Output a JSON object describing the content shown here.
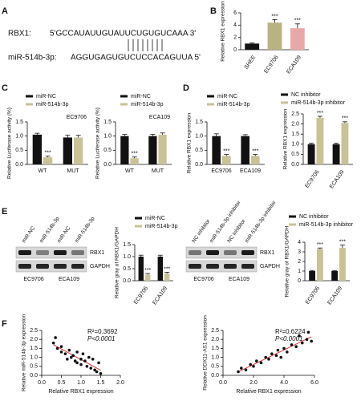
{
  "panel_labels": [
    "A",
    "B",
    "C",
    "D",
    "E",
    "F"
  ],
  "alignment": {
    "target_name": "RBX1:",
    "target_sequence": "5'GCCAUAUUGUAUUCUGUGUCAAA  3'",
    "mirna_name": "miR-514b-3p:",
    "mirna_sequence": "AGGUGAGUGUCUCCACAGUUA  5'"
  },
  "blots": [
    {
      "lanes": [
        "miR-NC",
        "miR-514b-3p",
        "miR-NC",
        "miR-514b-3p"
      ],
      "proteins": [
        "RBX1",
        "GAPDH"
      ],
      "groups": [
        "EC9706",
        "ECA109"
      ]
    },
    {
      "lanes": [
        "NC inhibitor",
        "miR-514b-3p inhibitor",
        "NC inhibitor",
        "miR-514b-3p inhibitor"
      ],
      "proteins": [
        "RBX1",
        "GAPDH"
      ],
      "groups": [
        "EC9706",
        "ECA109"
      ]
    }
  ],
  "chart_data": [
    {
      "type": "bar",
      "y_label": "Relative RBX1 expression",
      "categories": [
        "SHEE",
        "EC9706",
        "ECA109"
      ],
      "values": [
        1,
        4.4,
        3.5
      ],
      "errors": [
        0.1,
        0.5,
        0.7
      ],
      "colors": [
        "#111111",
        "#b9b283",
        "#e9a8a8"
      ],
      "significance": [
        null,
        "***",
        "***"
      ],
      "ylim": [
        0,
        6
      ],
      "yticks": [
        0,
        2,
        4,
        6
      ],
      "rotated_labels": true
    },
    {
      "type": "bar",
      "title": "EC9706",
      "y_label": "Relative Luciferase activity (%)",
      "categories": [
        "WT",
        "MUT"
      ],
      "series": [
        {
          "name": "miR-NC",
          "color": "#111111",
          "values": [
            1.05,
            0.95
          ],
          "errors": [
            0.05,
            0.08
          ]
        },
        {
          "name": "miR-514b-3p",
          "color": "#c8c296",
          "values": [
            0.25,
            0.95
          ],
          "errors": [
            0.04,
            0.08
          ],
          "significance": [
            "***",
            null
          ]
        }
      ],
      "ylim": [
        0,
        1.5
      ],
      "yticks": [
        {
          "value": 0,
          "label": "0.0"
        },
        0.5,
        {
          "value": 1,
          "label": "1.0"
        },
        1.5
      ],
      "legend": "top"
    },
    {
      "type": "bar",
      "title": "ECA109",
      "y_label": "Relative Luciferase activity (%)",
      "categories": [
        "WT",
        "MUT"
      ],
      "series": [
        {
          "name": "miR-NC",
          "color": "#111111",
          "values": [
            1.0,
            1.0
          ],
          "errors": [
            0.06,
            0.06
          ]
        },
        {
          "name": "miR-514b-3p",
          "color": "#c8c296",
          "values": [
            0.22,
            1.05
          ],
          "errors": [
            0.04,
            0.06
          ],
          "significance": [
            "***",
            null
          ]
        }
      ],
      "ylim": [
        0,
        1.5
      ],
      "yticks": [
        {
          "value": 0,
          "label": "0.0"
        },
        0.5,
        {
          "value": 1,
          "label": "1.0"
        },
        1.5
      ],
      "legend": "top"
    },
    {
      "type": "bar",
      "y_label": "Relative RBX1  expression",
      "categories": [
        "EC9706",
        "ECA109"
      ],
      "series": [
        {
          "name": "miR-NC",
          "color": "#111111",
          "values": [
            1.0,
            1.0
          ],
          "errors": [
            0.08,
            0.05
          ]
        },
        {
          "name": "miR-514b-3p",
          "color": "#c8c296",
          "values": [
            0.3,
            0.3
          ],
          "errors": [
            0.05,
            0.05
          ],
          "significance": [
            "***",
            "***"
          ]
        }
      ],
      "ylim": [
        0,
        1.5
      ],
      "yticks": [
        {
          "value": 0,
          "label": "0.0"
        },
        0.5,
        {
          "value": 1,
          "label": "1.0"
        },
        1.5
      ],
      "legend": "top"
    },
    {
      "type": "bar",
      "y_label": "Relative RBX1  expression",
      "categories": [
        "EC9706",
        "ECA109"
      ],
      "series": [
        {
          "name": "NC inhibitor",
          "color": "#111111",
          "values": [
            1.0,
            1.0
          ],
          "errors": [
            0.05,
            0.05
          ]
        },
        {
          "name": "miR-514b-3p inhibitor",
          "color": "#c8c296",
          "values": [
            2.3,
            2.05
          ],
          "errors": [
            0.08,
            0.06
          ],
          "significance": [
            "***",
            "***"
          ]
        }
      ],
      "ylim": [
        0,
        2.5
      ],
      "yticks": [
        {
          "value": 0,
          "label": "0.0"
        },
        0.5,
        {
          "value": 1,
          "label": "1.0"
        },
        1.5,
        {
          "value": 2,
          "label": "2.0"
        },
        2.5
      ],
      "legend": "top",
      "rotated_labels": true
    },
    {
      "type": "bar",
      "y_label": "Relative gray of RBX1/GAPDH",
      "categories": [
        "EC9706",
        "ECA109"
      ],
      "series": [
        {
          "name": "miR-NC",
          "color": "#111111",
          "values": [
            1.0,
            1.0
          ],
          "errors": [
            0.06,
            0.06
          ]
        },
        {
          "name": "miR-514b-3p",
          "color": "#c8c296",
          "values": [
            0.25,
            0.3
          ],
          "errors": [
            0.05,
            0.05
          ],
          "significance": [
            "***",
            "***"
          ]
        }
      ],
      "ylim": [
        0,
        1.5
      ],
      "yticks": [
        {
          "value": 0,
          "label": "0.0"
        },
        0.5,
        {
          "value": 1,
          "label": "1.0"
        },
        1.5
      ],
      "legend": "top",
      "rotated_labels": true
    },
    {
      "type": "bar",
      "y_label": "Relative gray of RBX1/GAPDH",
      "categories": [
        "EC9706",
        "ECA109"
      ],
      "series": [
        {
          "name": "NC inhibitor",
          "color": "#111111",
          "values": [
            1.0,
            1.0
          ],
          "errors": [
            0.06,
            0.06
          ]
        },
        {
          "name": "miR-514b-3p inhibitor",
          "color": "#c8c296",
          "values": [
            3.3,
            3.4
          ],
          "errors": [
            0.1,
            0.3
          ],
          "significance": [
            "***",
            "***"
          ]
        }
      ],
      "ylim": [
        0,
        4
      ],
      "yticks": [
        0,
        1,
        2,
        3,
        4
      ],
      "legend": "top",
      "rotated_labels": true
    },
    {
      "type": "scatter",
      "x_label": "Relative RBX1 expression",
      "y_label": "Relative miR-514b-3p expression",
      "annotations": [
        "R²=0.3692",
        "P<0.0001"
      ],
      "color": "#111111",
      "line_color": "#e03030",
      "x": [
        0.3,
        0.35,
        0.4,
        0.5,
        0.5,
        0.6,
        0.65,
        0.7,
        0.75,
        0.8,
        0.85,
        0.9,
        0.9,
        1.0,
        1.0,
        1.05,
        1.1,
        1.15,
        1.2,
        1.25,
        1.3,
        1.35,
        1.4,
        1.45,
        1.5
      ],
      "values": [
        1.8,
        2.1,
        1.5,
        1.3,
        1.6,
        1.2,
        0.9,
        1.4,
        1.0,
        1.1,
        0.8,
        0.7,
        1.3,
        0.9,
        0.6,
        1.2,
        0.8,
        0.5,
        1.0,
        0.4,
        0.9,
        0.3,
        0.2,
        0.7,
        0.1
      ],
      "xlim": [
        0,
        2
      ],
      "xticks": [
        {
          "value": 0,
          "label": "0.0"
        },
        0.5,
        {
          "value": 1,
          "label": "1.0"
        },
        1.5,
        {
          "value": 2,
          "label": "2.0"
        }
      ],
      "ylim": [
        0,
        2.5
      ],
      "yticks": [
        {
          "value": 0,
          "label": "0.0"
        },
        0.5,
        {
          "value": 1,
          "label": "1.0"
        },
        1.5,
        {
          "value": 2,
          "label": "2.0"
        },
        2.5
      ]
    },
    {
      "type": "scatter",
      "x_label": "Relative RBX1 expression",
      "y_label": "Relative DDX11-AS1 expression",
      "annotations": [
        "R²=0.6224",
        "P<0.0001"
      ],
      "color": "#111111",
      "line_color": "#e03030",
      "x": [
        1.0,
        1.2,
        1.5,
        1.8,
        2.0,
        2.2,
        2.5,
        2.8,
        3.0,
        3.2,
        3.5,
        3.6,
        3.8,
        4.0,
        4.2,
        4.5,
        4.8,
        5.0,
        5.2,
        5.5,
        5.6,
        5.8
      ],
      "values": [
        0.2,
        0.4,
        0.3,
        0.6,
        0.5,
        0.8,
        0.7,
        1.0,
        0.9,
        1.2,
        1.1,
        1.4,
        1.0,
        1.5,
        1.3,
        1.7,
        1.6,
        2.2,
        1.8,
        2.0,
        2.4,
        1.9
      ],
      "xlim": [
        0,
        6
      ],
      "xticks": [
        {
          "value": 0,
          "label": "0.0"
        },
        {
          "value": 2,
          "label": "2.0"
        },
        {
          "value": 4,
          "label": "4.0"
        },
        {
          "value": 6,
          "label": "6.0"
        }
      ],
      "ylim": [
        0,
        2.5
      ],
      "yticks": [
        {
          "value": 0,
          "label": "0.0"
        },
        0.5,
        {
          "value": 1,
          "label": "1.0"
        },
        1.5,
        {
          "value": 2,
          "label": "2.0"
        },
        2.5
      ]
    }
  ]
}
